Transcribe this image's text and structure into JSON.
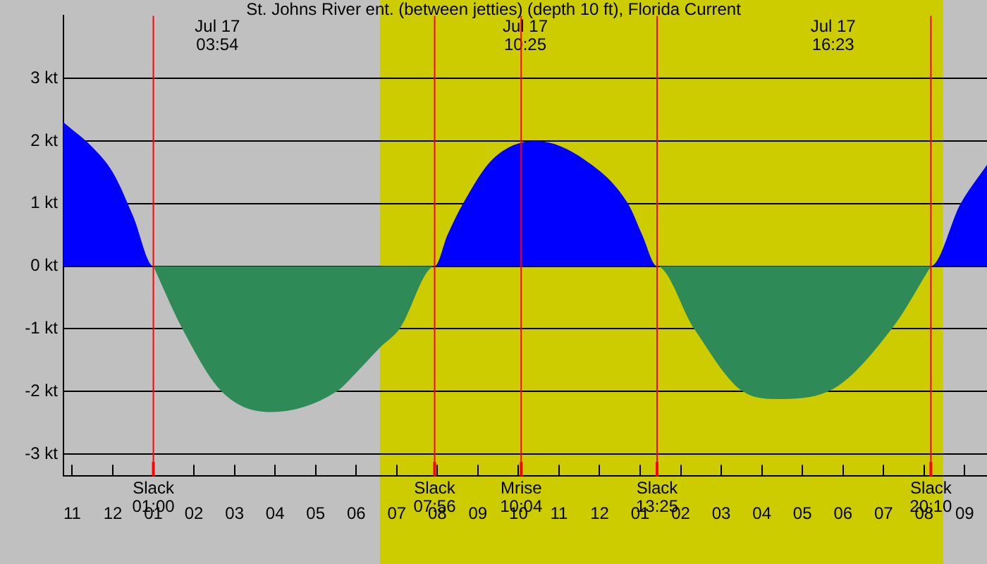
{
  "chart_data": {
    "type": "area",
    "title": "St. Johns River ent. (between jetties) (depth 10 ft), Florida Current",
    "xlim": [
      "--07-16T22:47",
      "--07-17T21:33"
    ],
    "xticks": [
      {
        "value": "--07-16T23:00",
        "label": "11"
      },
      {
        "value": "--07-17T00:00",
        "label": "12"
      },
      {
        "value": "--07-17T01:00",
        "label": "01"
      },
      {
        "value": "--07-17T02:00",
        "label": "02"
      },
      {
        "value": "--07-17T03:00",
        "label": "03"
      },
      {
        "value": "--07-17T04:00",
        "label": "04"
      },
      {
        "value": "--07-17T05:00",
        "label": "05"
      },
      {
        "value": "--07-17T06:00",
        "label": "06"
      },
      {
        "value": "--07-17T07:00",
        "label": "07"
      },
      {
        "value": "--07-17T08:00",
        "label": "08"
      },
      {
        "value": "--07-17T09:00",
        "label": "09"
      },
      {
        "value": "--07-17T10:00",
        "label": "10"
      },
      {
        "value": "--07-17T11:00",
        "label": "11"
      },
      {
        "value": "--07-17T12:00",
        "label": "12"
      },
      {
        "value": "--07-17T13:00",
        "label": "01"
      },
      {
        "value": "--07-17T14:00",
        "label": "02"
      },
      {
        "value": "--07-17T15:00",
        "label": "03"
      },
      {
        "value": "--07-17T16:00",
        "label": "04"
      },
      {
        "value": "--07-17T17:00",
        "label": "05"
      },
      {
        "value": "--07-17T18:00",
        "label": "06"
      },
      {
        "value": "--07-17T19:00",
        "label": "07"
      },
      {
        "value": "--07-17T20:00",
        "label": "08"
      },
      {
        "value": "--07-17T21:00",
        "label": "09"
      }
    ],
    "ylim": [
      -3.35,
      4
    ],
    "yticks": [
      {
        "value": -3,
        "label": "-3 kt"
      },
      {
        "value": -2,
        "label": "-2 kt"
      },
      {
        "value": -1,
        "label": "-1 kt"
      },
      {
        "value": 0,
        "label": "0 kt"
      },
      {
        "value": 1,
        "label": "1 kt"
      },
      {
        "value": 2,
        "label": "2 kt"
      },
      {
        "value": 3,
        "label": "3 kt"
      }
    ],
    "grid": "y",
    "series": [
      {
        "color": "#0000ff",
        "x": [
          "--07-16T22:47",
          "--07-16T23:30",
          "--07-17T00:00",
          "--07-17T00:30",
          "--07-17T01:00",
          "--07-17T07:56",
          "--07-17T08:15",
          "--07-17T08:38",
          "--07-17T09:21",
          "--07-17T10:25",
          "--07-17T11:38",
          "--07-17T12:42",
          "--07-17T13:03",
          "--07-17T13:25",
          "--07-17T20:10",
          "--07-17T20:54",
          "--07-17T21:33"
        ],
        "values": [
          2.3,
          1.9,
          1.5,
          0.8,
          0,
          0,
          0.5,
          1,
          1.7,
          2.0,
          1.7,
          1,
          0.5,
          0,
          0,
          1,
          1.62
        ]
      },
      {
        "color": "#2e8b57",
        "x": [
          "--07-17T01:00",
          "--07-17T01:43",
          "--07-17T02:41",
          "--07-17T03:54",
          "--07-17T05:31",
          "--07-17T06:00",
          "--07-17T06:35",
          "--07-17T07:04",
          "--07-17T07:56",
          "--07-17T13:25",
          "--07-17T14:20",
          "--07-17T15:32",
          "--07-17T16:23",
          "--07-17T17:38",
          "--07-17T19:12",
          "--07-17T20:10"
        ],
        "values": [
          0,
          -1,
          -2,
          -2.33,
          -2,
          -1.7,
          -1.3,
          -1,
          0,
          0,
          -1,
          -2,
          -2.12,
          -2,
          -1,
          0
        ]
      }
    ],
    "bands": [
      {
        "axis": "x",
        "from": "--07-17T06:35",
        "to": "--07-17T20:28",
        "color": "#cccc00"
      }
    ],
    "ref_lines": [
      {
        "axis": "x",
        "value": "--07-17T01:00",
        "label": "Slack\n01:00",
        "color": "#ff0000"
      },
      {
        "axis": "x",
        "value": "--07-17T07:56",
        "label": "Slack\n07:56",
        "color": "#ff0000"
      },
      {
        "axis": "x",
        "value": "--07-17T10:04",
        "label": "Mrise\n10:04",
        "color": "#ff0000"
      },
      {
        "axis": "x",
        "value": "--07-17T13:25",
        "label": "Slack\n13:25",
        "color": "#ff0000"
      },
      {
        "axis": "x",
        "value": "--07-17T20:10",
        "label": "Slack\n20:10",
        "color": "#ff0000"
      }
    ],
    "annotations": [
      "Jul 17\n03:54",
      "Jul 17\n10:25",
      "Jul 17\n16:23"
    ]
  }
}
